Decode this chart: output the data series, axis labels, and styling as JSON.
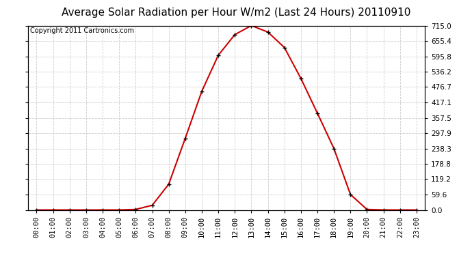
{
  "title": "Average Solar Radiation per Hour W/m2 (Last 24 Hours) 20110910",
  "copyright": "Copyright 2011 Cartronics.com",
  "hours": [
    "00:00",
    "01:00",
    "02:00",
    "03:00",
    "04:00",
    "05:00",
    "06:00",
    "07:00",
    "08:00",
    "09:00",
    "10:00",
    "11:00",
    "12:00",
    "13:00",
    "14:00",
    "15:00",
    "16:00",
    "17:00",
    "18:00",
    "19:00",
    "20:00",
    "21:00",
    "22:00",
    "23:00"
  ],
  "values": [
    0.0,
    0.0,
    0.0,
    0.0,
    0.0,
    0.0,
    2.0,
    18.0,
    100.0,
    278.0,
    460.0,
    600.0,
    680.0,
    715.0,
    690.0,
    630.0,
    510.0,
    375.0,
    238.0,
    59.6,
    2.0,
    0.0,
    0.0,
    0.0
  ],
  "line_color": "#cc0000",
  "marker": "+",
  "marker_color": "#000000",
  "marker_size": 5,
  "background_color": "#ffffff",
  "plot_bg_color": "#ffffff",
  "grid_color": "#cccccc",
  "grid_style": "--",
  "ylim": [
    0.0,
    715.0
  ],
  "yticks": [
    0.0,
    59.6,
    119.2,
    178.8,
    238.3,
    297.9,
    357.5,
    417.1,
    476.7,
    536.2,
    595.8,
    655.4,
    715.0
  ],
  "ytick_labels": [
    "0.0",
    "59.6",
    "119.2",
    "178.8",
    "238.3",
    "297.9",
    "357.5",
    "417.1",
    "476.7",
    "536.2",
    "595.8",
    "655.4",
    "715.0"
  ],
  "title_fontsize": 11,
  "copyright_fontsize": 7,
  "tick_fontsize": 7.5
}
